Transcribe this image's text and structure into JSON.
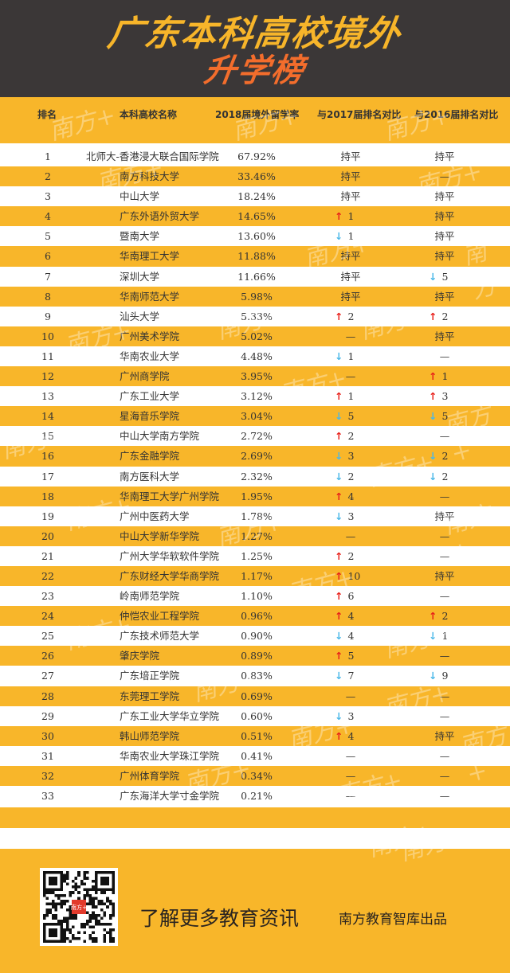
{
  "header": {
    "title_line1": "广东本科高校境外",
    "title_line2": "升学榜"
  },
  "columns": {
    "rank": "排名",
    "name": "本科高校名称",
    "rate": "2018届境外留学率",
    "vs2017": "与2017届排名对比",
    "vs2016": "与2016届排名对比"
  },
  "colors": {
    "yellow": "#f8b62a",
    "dark": "#3b3737",
    "up": "#e8201a",
    "down": "#4ab8e8",
    "title_yellow": "#f7b52a",
    "title_orange": "#f36d2c"
  },
  "rows": [
    {
      "rank": "1",
      "name": "北师大-香港浸大联合国际学院",
      "rate": "67.92%",
      "vs2017": {
        "type": "text",
        "text": "持平"
      },
      "vs2016": {
        "type": "text",
        "text": "持平"
      }
    },
    {
      "rank": "2",
      "name": "南方科技大学",
      "rate": "33.46%",
      "vs2017": {
        "type": "text",
        "text": "持平"
      },
      "vs2016": {
        "type": "text",
        "text": "—"
      }
    },
    {
      "rank": "3",
      "name": "中山大学",
      "rate": "18.24%",
      "vs2017": {
        "type": "text",
        "text": "持平"
      },
      "vs2016": {
        "type": "text",
        "text": "持平"
      }
    },
    {
      "rank": "4",
      "name": "广东外语外贸大学",
      "rate": "14.65%",
      "vs2017": {
        "type": "up",
        "text": "1"
      },
      "vs2016": {
        "type": "text",
        "text": "持平"
      }
    },
    {
      "rank": "5",
      "name": "暨南大学",
      "rate": "13.60%",
      "vs2017": {
        "type": "down",
        "text": "1"
      },
      "vs2016": {
        "type": "text",
        "text": "持平"
      }
    },
    {
      "rank": "6",
      "name": "华南理工大学",
      "rate": "11.88%",
      "vs2017": {
        "type": "text",
        "text": "持平"
      },
      "vs2016": {
        "type": "text",
        "text": "持平"
      }
    },
    {
      "rank": "7",
      "name": "深圳大学",
      "rate": "11.66%",
      "vs2017": {
        "type": "text",
        "text": "持平"
      },
      "vs2016": {
        "type": "down",
        "text": "5"
      }
    },
    {
      "rank": "8",
      "name": "华南师范大学",
      "rate": "5.98%",
      "vs2017": {
        "type": "text",
        "text": "持平"
      },
      "vs2016": {
        "type": "text",
        "text": "持平"
      }
    },
    {
      "rank": "9",
      "name": "汕头大学",
      "rate": "5.33%",
      "vs2017": {
        "type": "up",
        "text": "2"
      },
      "vs2016": {
        "type": "up",
        "text": "2"
      }
    },
    {
      "rank": "10",
      "name": "广州美术学院",
      "rate": "5.02%",
      "vs2017": {
        "type": "text",
        "text": "—"
      },
      "vs2016": {
        "type": "text",
        "text": "持平"
      }
    },
    {
      "rank": "11",
      "name": "华南农业大学",
      "rate": "4.48%",
      "vs2017": {
        "type": "down",
        "text": "1"
      },
      "vs2016": {
        "type": "text",
        "text": "—"
      }
    },
    {
      "rank": "12",
      "name": "广州商学院",
      "rate": "3.95%",
      "vs2017": {
        "type": "text",
        "text": "—"
      },
      "vs2016": {
        "type": "up",
        "text": "1"
      }
    },
    {
      "rank": "13",
      "name": "广东工业大学",
      "rate": "3.12%",
      "vs2017": {
        "type": "up",
        "text": "1"
      },
      "vs2016": {
        "type": "up",
        "text": "3"
      }
    },
    {
      "rank": "14",
      "name": "星海音乐学院",
      "rate": "3.04%",
      "vs2017": {
        "type": "down",
        "text": "5"
      },
      "vs2016": {
        "type": "down",
        "text": "5"
      }
    },
    {
      "rank": "15",
      "name": "中山大学南方学院",
      "rate": "2.72%",
      "vs2017": {
        "type": "up",
        "text": "2"
      },
      "vs2016": {
        "type": "text",
        "text": "—"
      }
    },
    {
      "rank": "16",
      "name": "广东金融学院",
      "rate": "2.69%",
      "vs2017": {
        "type": "down",
        "text": "3"
      },
      "vs2016": {
        "type": "down",
        "text": "2"
      }
    },
    {
      "rank": "17",
      "name": "南方医科大学",
      "rate": "2.32%",
      "vs2017": {
        "type": "down",
        "text": "2"
      },
      "vs2016": {
        "type": "down",
        "text": "2"
      }
    },
    {
      "rank": "18",
      "name": "华南理工大学广州学院",
      "rate": "1.95%",
      "vs2017": {
        "type": "up",
        "text": "4"
      },
      "vs2016": {
        "type": "text",
        "text": "—"
      }
    },
    {
      "rank": "19",
      "name": "广州中医药大学",
      "rate": "1.78%",
      "vs2017": {
        "type": "down",
        "text": "3"
      },
      "vs2016": {
        "type": "text",
        "text": "持平"
      }
    },
    {
      "rank": "20",
      "name": "中山大学新华学院",
      "rate": "1.27%",
      "vs2017": {
        "type": "text",
        "text": "—"
      },
      "vs2016": {
        "type": "text",
        "text": "—"
      }
    },
    {
      "rank": "21",
      "name": "广州大学华软软件学院",
      "rate": "1.25%",
      "vs2017": {
        "type": "up",
        "text": "2"
      },
      "vs2016": {
        "type": "text",
        "text": "—"
      }
    },
    {
      "rank": "22",
      "name": "广东财经大学华商学院",
      "rate": "1.17%",
      "vs2017": {
        "type": "up",
        "text": "10"
      },
      "vs2016": {
        "type": "text",
        "text": "持平"
      }
    },
    {
      "rank": "23",
      "name": "岭南师范学院",
      "rate": "1.10%",
      "vs2017": {
        "type": "up",
        "text": "6"
      },
      "vs2016": {
        "type": "text",
        "text": "—"
      }
    },
    {
      "rank": "24",
      "name": "仲恺农业工程学院",
      "rate": "0.96%",
      "vs2017": {
        "type": "up",
        "text": "4"
      },
      "vs2016": {
        "type": "up",
        "text": "2"
      }
    },
    {
      "rank": "25",
      "name": "广东技术师范大学",
      "rate": "0.90%",
      "vs2017": {
        "type": "down",
        "text": "4"
      },
      "vs2016": {
        "type": "down",
        "text": "1"
      }
    },
    {
      "rank": "26",
      "name": "肇庆学院",
      "rate": "0.89%",
      "vs2017": {
        "type": "up",
        "text": "5"
      },
      "vs2016": {
        "type": "text",
        "text": "—"
      }
    },
    {
      "rank": "27",
      "name": "广东培正学院",
      "rate": "0.83%",
      "vs2017": {
        "type": "down",
        "text": "7"
      },
      "vs2016": {
        "type": "down",
        "text": "9"
      }
    },
    {
      "rank": "28",
      "name": "东莞理工学院",
      "rate": "0.69%",
      "vs2017": {
        "type": "text",
        "text": "—"
      },
      "vs2016": {
        "type": "text",
        "text": "—"
      }
    },
    {
      "rank": "29",
      "name": "广东工业大学华立学院",
      "rate": "0.60%",
      "vs2017": {
        "type": "down",
        "text": "3"
      },
      "vs2016": {
        "type": "text",
        "text": "—"
      }
    },
    {
      "rank": "30",
      "name": "韩山师范学院",
      "rate": "0.51%",
      "vs2017": {
        "type": "up",
        "text": "4"
      },
      "vs2016": {
        "type": "text",
        "text": "持平"
      }
    },
    {
      "rank": "31",
      "name": "华南农业大学珠江学院",
      "rate": "0.41%",
      "vs2017": {
        "type": "text",
        "text": "—"
      },
      "vs2016": {
        "type": "text",
        "text": "—"
      }
    },
    {
      "rank": "32",
      "name": "广州体育学院",
      "rate": "0.34%",
      "vs2017": {
        "type": "text",
        "text": "—"
      },
      "vs2016": {
        "type": "text",
        "text": "—"
      }
    },
    {
      "rank": "33",
      "name": "广东海洋大学寸金学院",
      "rate": "0.21%",
      "vs2017": {
        "type": "text",
        "text": "—"
      },
      "vs2016": {
        "type": "text",
        "text": "—"
      }
    }
  ],
  "footer": {
    "slogan": "了解更多教育资讯",
    "producer": "南方教育智库出品",
    "qr_logo": "南方+"
  },
  "watermark": "南方+"
}
